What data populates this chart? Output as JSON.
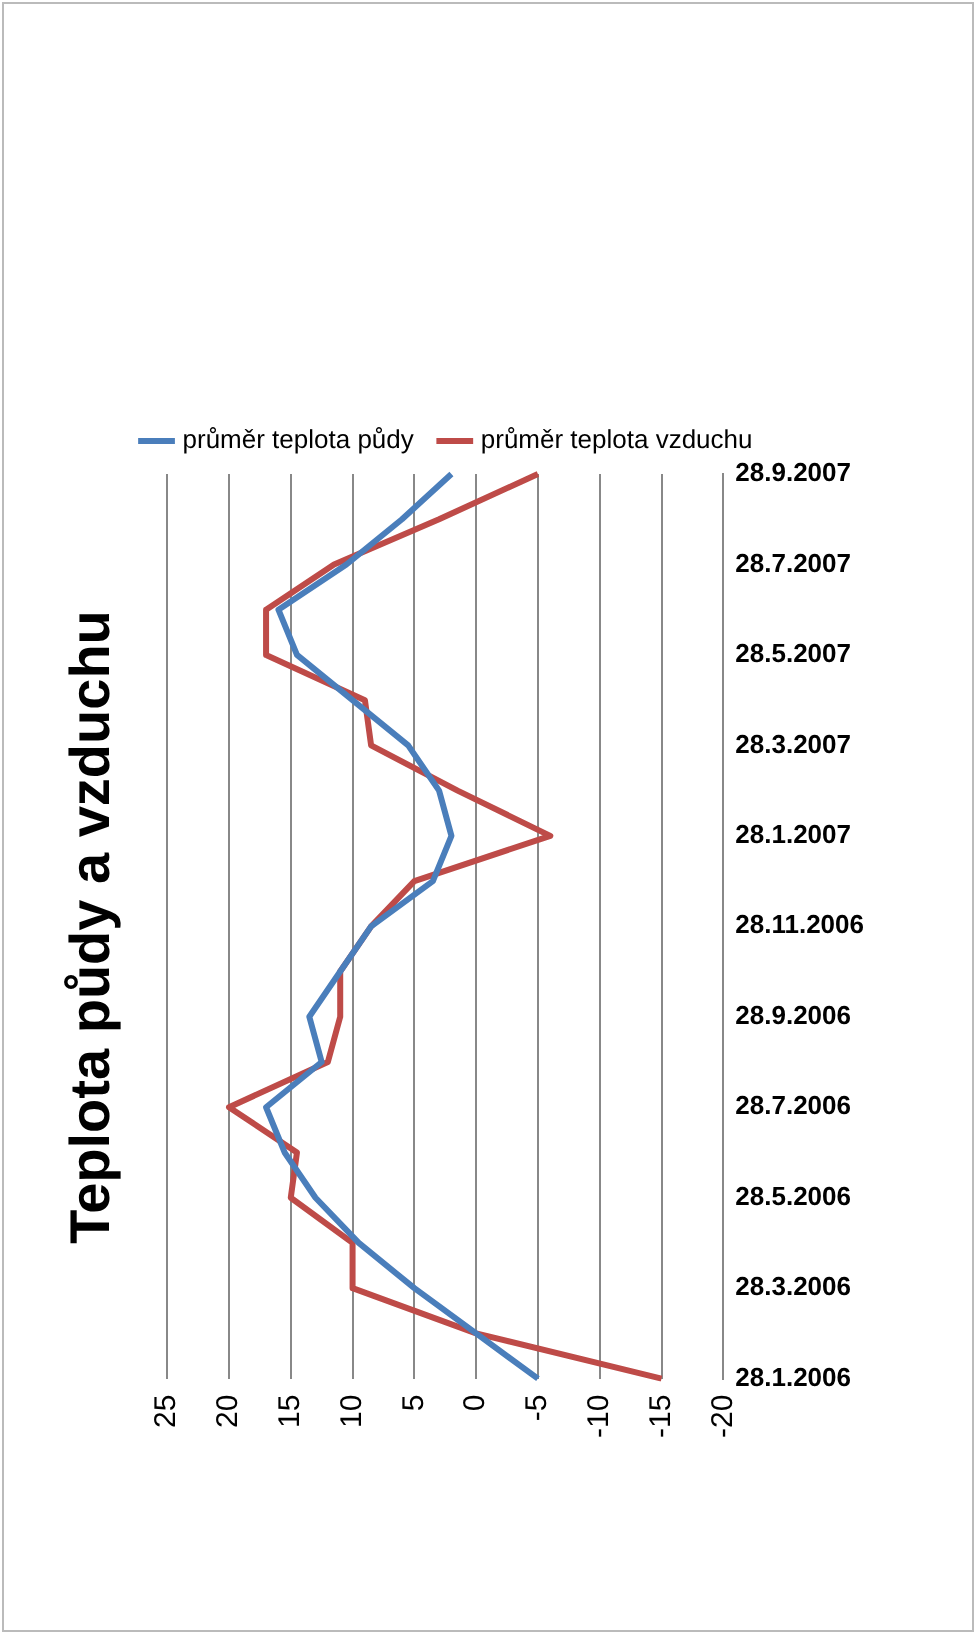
{
  "chart_data": {
    "type": "line",
    "title": "Teplota půdy a vzduchu",
    "orientation": "horizontal",
    "categories": [
      "28.9.2007",
      null,
      "28.7.2007",
      null,
      "28.5.2007",
      null,
      "28.3.2007",
      null,
      "28.1.2007",
      null,
      "28.11.2006",
      null,
      "28.9.2006",
      null,
      "28.7.2006",
      null,
      "28.5.2006",
      null,
      "28.3.2006",
      null,
      "28.1.2006"
    ],
    "series": [
      {
        "name": "průměr teplota půdy",
        "color": "#4a7ebb",
        "values": [
          2,
          6,
          10.5,
          16,
          14.5,
          10,
          5.5,
          3,
          2,
          3.5,
          8.5,
          11,
          13.5,
          12.5,
          17,
          15.5,
          13,
          9.5,
          5,
          0,
          -5
        ]
      },
      {
        "name": "průměr teplota vzduchu",
        "color": "#be4b48",
        "values": [
          -5,
          3,
          11.5,
          17,
          17,
          9,
          8.5,
          1.5,
          -6,
          5,
          8.5,
          11,
          11,
          12,
          20,
          14.5,
          15,
          10,
          10,
          0,
          -15
        ]
      }
    ],
    "xlim": [
      25,
      -20
    ],
    "xticks": [
      25,
      20,
      15,
      10,
      5,
      0,
      -5,
      -10,
      -15,
      -20
    ],
    "grid": "x",
    "legend": "top",
    "marker": "none",
    "line_style": "solid"
  }
}
